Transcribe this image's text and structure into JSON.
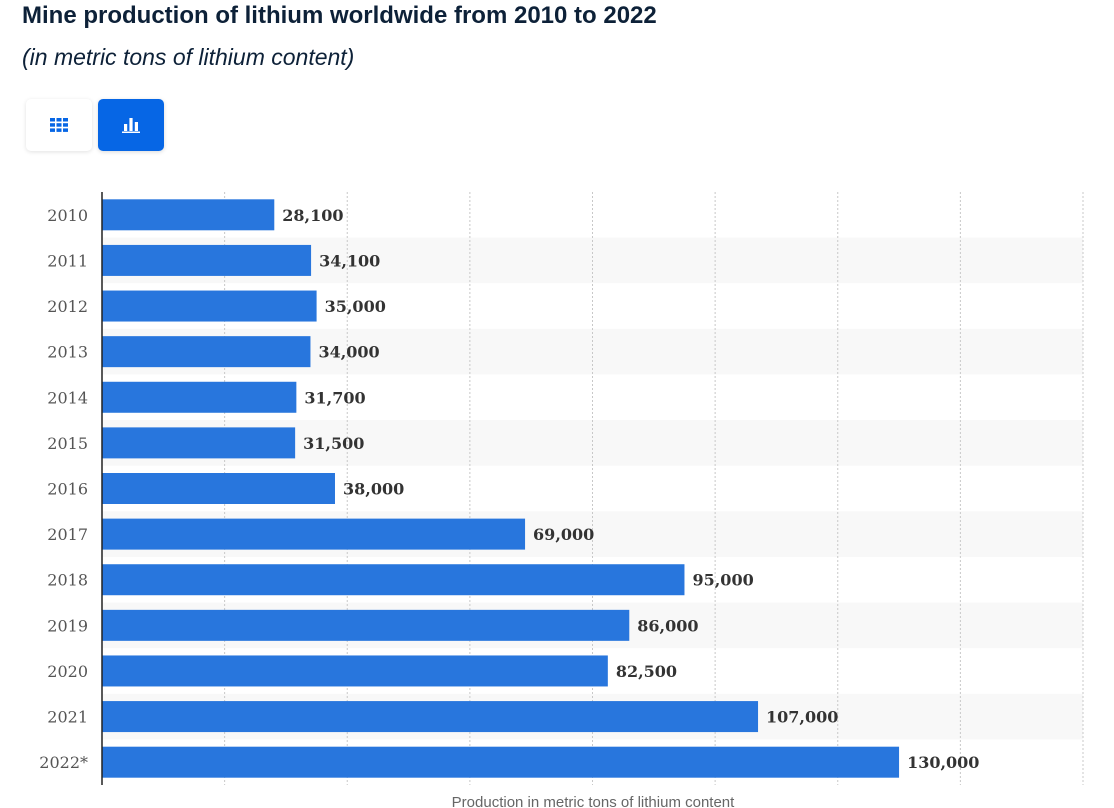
{
  "header": {
    "title": "Mine production of lithium worldwide from 2010 to 2022",
    "subtitle": "(in metric tons of lithium content)"
  },
  "view_toggle": {
    "table_icon": "table-grid-icon",
    "chart_icon": "bar-chart-icon",
    "active": "chart",
    "active_color": "#0666e5"
  },
  "chart_data": {
    "type": "bar",
    "orientation": "horizontal",
    "categories": [
      "2010",
      "2011",
      "2012",
      "2013",
      "2014",
      "2015",
      "2016",
      "2017",
      "2018",
      "2019",
      "2020",
      "2021",
      "2022*"
    ],
    "values": [
      28100,
      34100,
      35000,
      34000,
      31700,
      31500,
      38000,
      69000,
      95000,
      86000,
      82500,
      107000,
      130000
    ],
    "value_labels": [
      "28,100",
      "34,100",
      "35,000",
      "34,000",
      "31,700",
      "31,500",
      "38,000",
      "69,000",
      "95,000",
      "86,000",
      "82,500",
      "107,000",
      "130,000"
    ],
    "title": "Mine production of lithium worldwide from 2010 to 2022",
    "xlabel": "Production in metric tons of lithium content",
    "ylabel": "",
    "xlim": [
      0,
      160000
    ],
    "grid": true,
    "bar_color": "#2876dd",
    "stripe_color": "#f8f8f8"
  }
}
